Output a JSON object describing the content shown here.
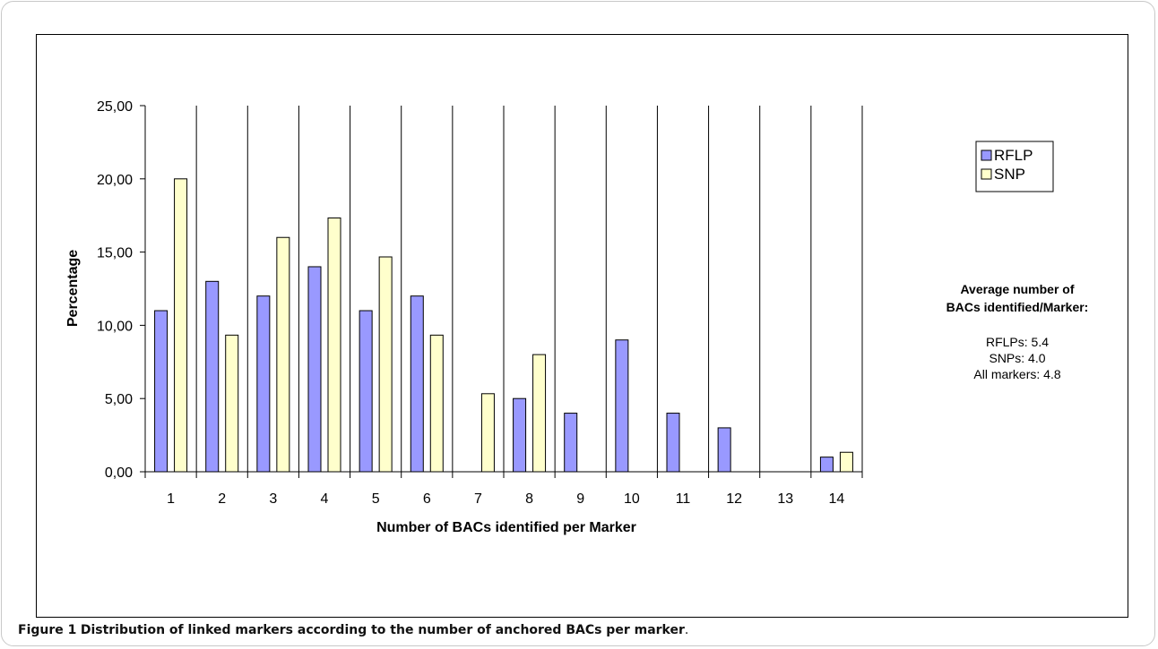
{
  "chart_data": {
    "type": "bar",
    "categories": [
      "1",
      "2",
      "3",
      "4",
      "5",
      "6",
      "7",
      "8",
      "9",
      "10",
      "11",
      "12",
      "13",
      "14"
    ],
    "series": [
      {
        "name": "RFLP",
        "color": "#9999ff",
        "values": [
          11,
          13,
          12,
          14,
          11,
          12,
          0,
          5,
          4,
          9,
          4,
          3,
          0,
          1
        ]
      },
      {
        "name": "SNP",
        "color": "#ffffcc",
        "values": [
          20,
          9.33,
          16,
          17.33,
          14.67,
          9.33,
          5.33,
          8,
          0,
          0,
          0,
          0,
          0,
          1.33
        ]
      }
    ],
    "title": "",
    "xlabel": "Number of BACs identified per Marker",
    "ylabel": "Percentage",
    "ylim": [
      0,
      25
    ],
    "yticks": [
      0,
      5,
      10,
      15,
      20,
      25
    ],
    "ytick_labels": [
      "0,00",
      "5,00",
      "10,00",
      "15,00",
      "20,00",
      "25,00"
    ],
    "grid": "vertical category separators",
    "legend_position": "right",
    "annotation": {
      "title_lines": [
        "Average number of",
        "BACs identified/Marker:"
      ],
      "lines": [
        "RFLPs: 5.4",
        "SNPs: 4.0",
        "All markers: 4.8"
      ]
    }
  },
  "caption": {
    "label": "Figure 1",
    "text": "Distribution of linked markers according to the number of anchored BACs per marker",
    "end": "."
  }
}
